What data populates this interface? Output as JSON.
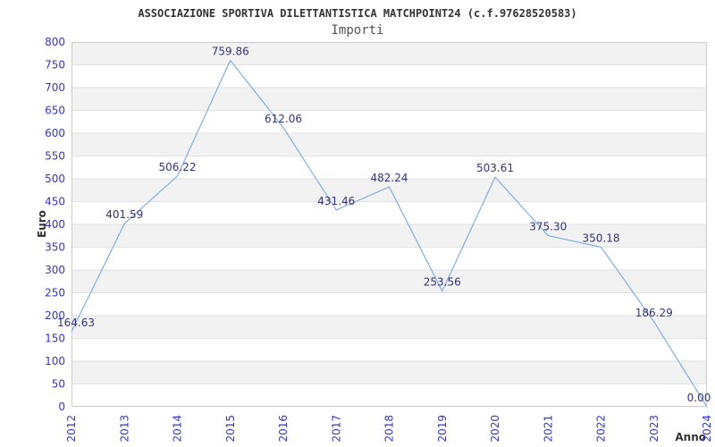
{
  "chart_data": {
    "type": "line",
    "title": "ASSOCIAZIONE SPORTIVA DILETTANTISTICA MATCHPOINT24 (c.f.97628520583)",
    "subtitle": "Importi",
    "xlabel": "Anno",
    "ylabel": "Euro",
    "categories": [
      "2012",
      "2013",
      "2014",
      "2015",
      "2016",
      "2017",
      "2018",
      "2019",
      "2020",
      "2021",
      "2022",
      "2023",
      "2024"
    ],
    "series": [
      {
        "name": "Importi",
        "values": [
          164.63,
          401.59,
          506.22,
          759.86,
          612.06,
          431.46,
          482.24,
          253.56,
          503.61,
          375.3,
          350.18,
          186.29,
          0.0
        ],
        "point_labels": [
          "164.63",
          "401.59",
          "506.22",
          "759.86",
          "612.06",
          "431.46",
          "482.24",
          "253.56",
          "503.61",
          "375.30",
          "350.18",
          "186.29",
          "0.00"
        ]
      }
    ],
    "ylim": [
      0,
      800
    ],
    "ytick_step": 50,
    "legend_position": "none",
    "grid": "horizontal-stripes",
    "colors": {
      "line": "#7fb0e0",
      "tick_label": "#3333cc",
      "point_label": "#333377",
      "stripe": "#f2f2f2",
      "grid_line": "#e2e2e2",
      "plot_border": "#cccccc",
      "title": "#333333",
      "subtitle": "#555555",
      "axis_title": "#333333",
      "background": "#ffffff"
    }
  }
}
